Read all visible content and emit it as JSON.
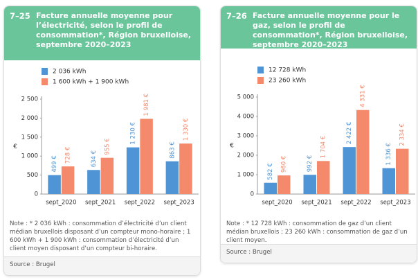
{
  "chart_data": [
    {
      "type": "bar",
      "figure_number": "7–25",
      "title": "Facture annuelle moyenne pour l’électricité, selon le profil de consommation*, Région bruxelloise, septembre 2020–2023",
      "y_label": "€",
      "categories": [
        "sept_2020",
        "sept_2021",
        "sept_2022",
        "sept_2023"
      ],
      "series": [
        {
          "name": "2 036 kWh",
          "color": "#4f95d6",
          "values": [
            499,
            634,
            1230,
            863
          ],
          "value_labels": [
            "499 €",
            "634 €",
            "1 230 €",
            "863 €"
          ]
        },
        {
          "name": "1 600 kWh + 1 900 kWh",
          "color": "#f4896b",
          "values": [
            728,
            955,
            1981,
            1330
          ],
          "value_labels": [
            "728 €",
            "955 €",
            "1 981 €",
            "1 330 €"
          ]
        }
      ],
      "ylim": [
        0,
        2500
      ],
      "yticks": [
        0,
        500,
        {
          "value": 1000,
          "label": "1 000"
        },
        {
          "value": 1500,
          "label": "1 500"
        },
        {
          "value": 2000,
          "label": "2 000"
        },
        {
          "value": 2500,
          "label": "2 500"
        }
      ],
      "note": "Note : * 2 036 kWh : consommation d’électricité d’un client médian bruxellois disposant d’un compteur mono-horaire ; 1 600 kWh + 1 900 kWh : consommation d’électricité d’un client moyen disposant d’un compteur bi-horaire.",
      "source": "Source : Brugel"
    },
    {
      "type": "bar",
      "figure_number": "7–26",
      "title": "Facture annuelle moyenne pour le gaz, selon le profil de consommation*, Région bruxelloise, septembre 2020–2023",
      "y_label": "€",
      "categories": [
        "sept_2020",
        "sept_2021",
        "sept_2022",
        "sept_2023"
      ],
      "series": [
        {
          "name": "12 728 kWh",
          "color": "#4f95d6",
          "values": [
            582,
            992,
            2422,
            1336
          ],
          "value_labels": [
            "582 €",
            "992 €",
            "2 422 €",
            "1 336 €"
          ]
        },
        {
          "name": "23 260 kWh",
          "color": "#f4896b",
          "values": [
            960,
            1704,
            4331,
            2334
          ],
          "value_labels": [
            "960 €",
            "1 704 €",
            "4 331 €",
            "2 334 €"
          ]
        }
      ],
      "ylim": [
        0,
        5000
      ],
      "yticks": [
        0,
        {
          "value": 1000,
          "label": "1 000"
        },
        {
          "value": 2000,
          "label": "2 000"
        },
        {
          "value": 3000,
          "label": "3 000"
        },
        {
          "value": 4000,
          "label": "4 000"
        },
        {
          "value": 5000,
          "label": "5 000"
        }
      ],
      "note": "Note : * 12 728 kWh : consommation de gaz d’un client médian bruxellois ; 23 260 kWh : consommation de gaz d’un client moyen.",
      "source": "Source : Brugel"
    }
  ]
}
